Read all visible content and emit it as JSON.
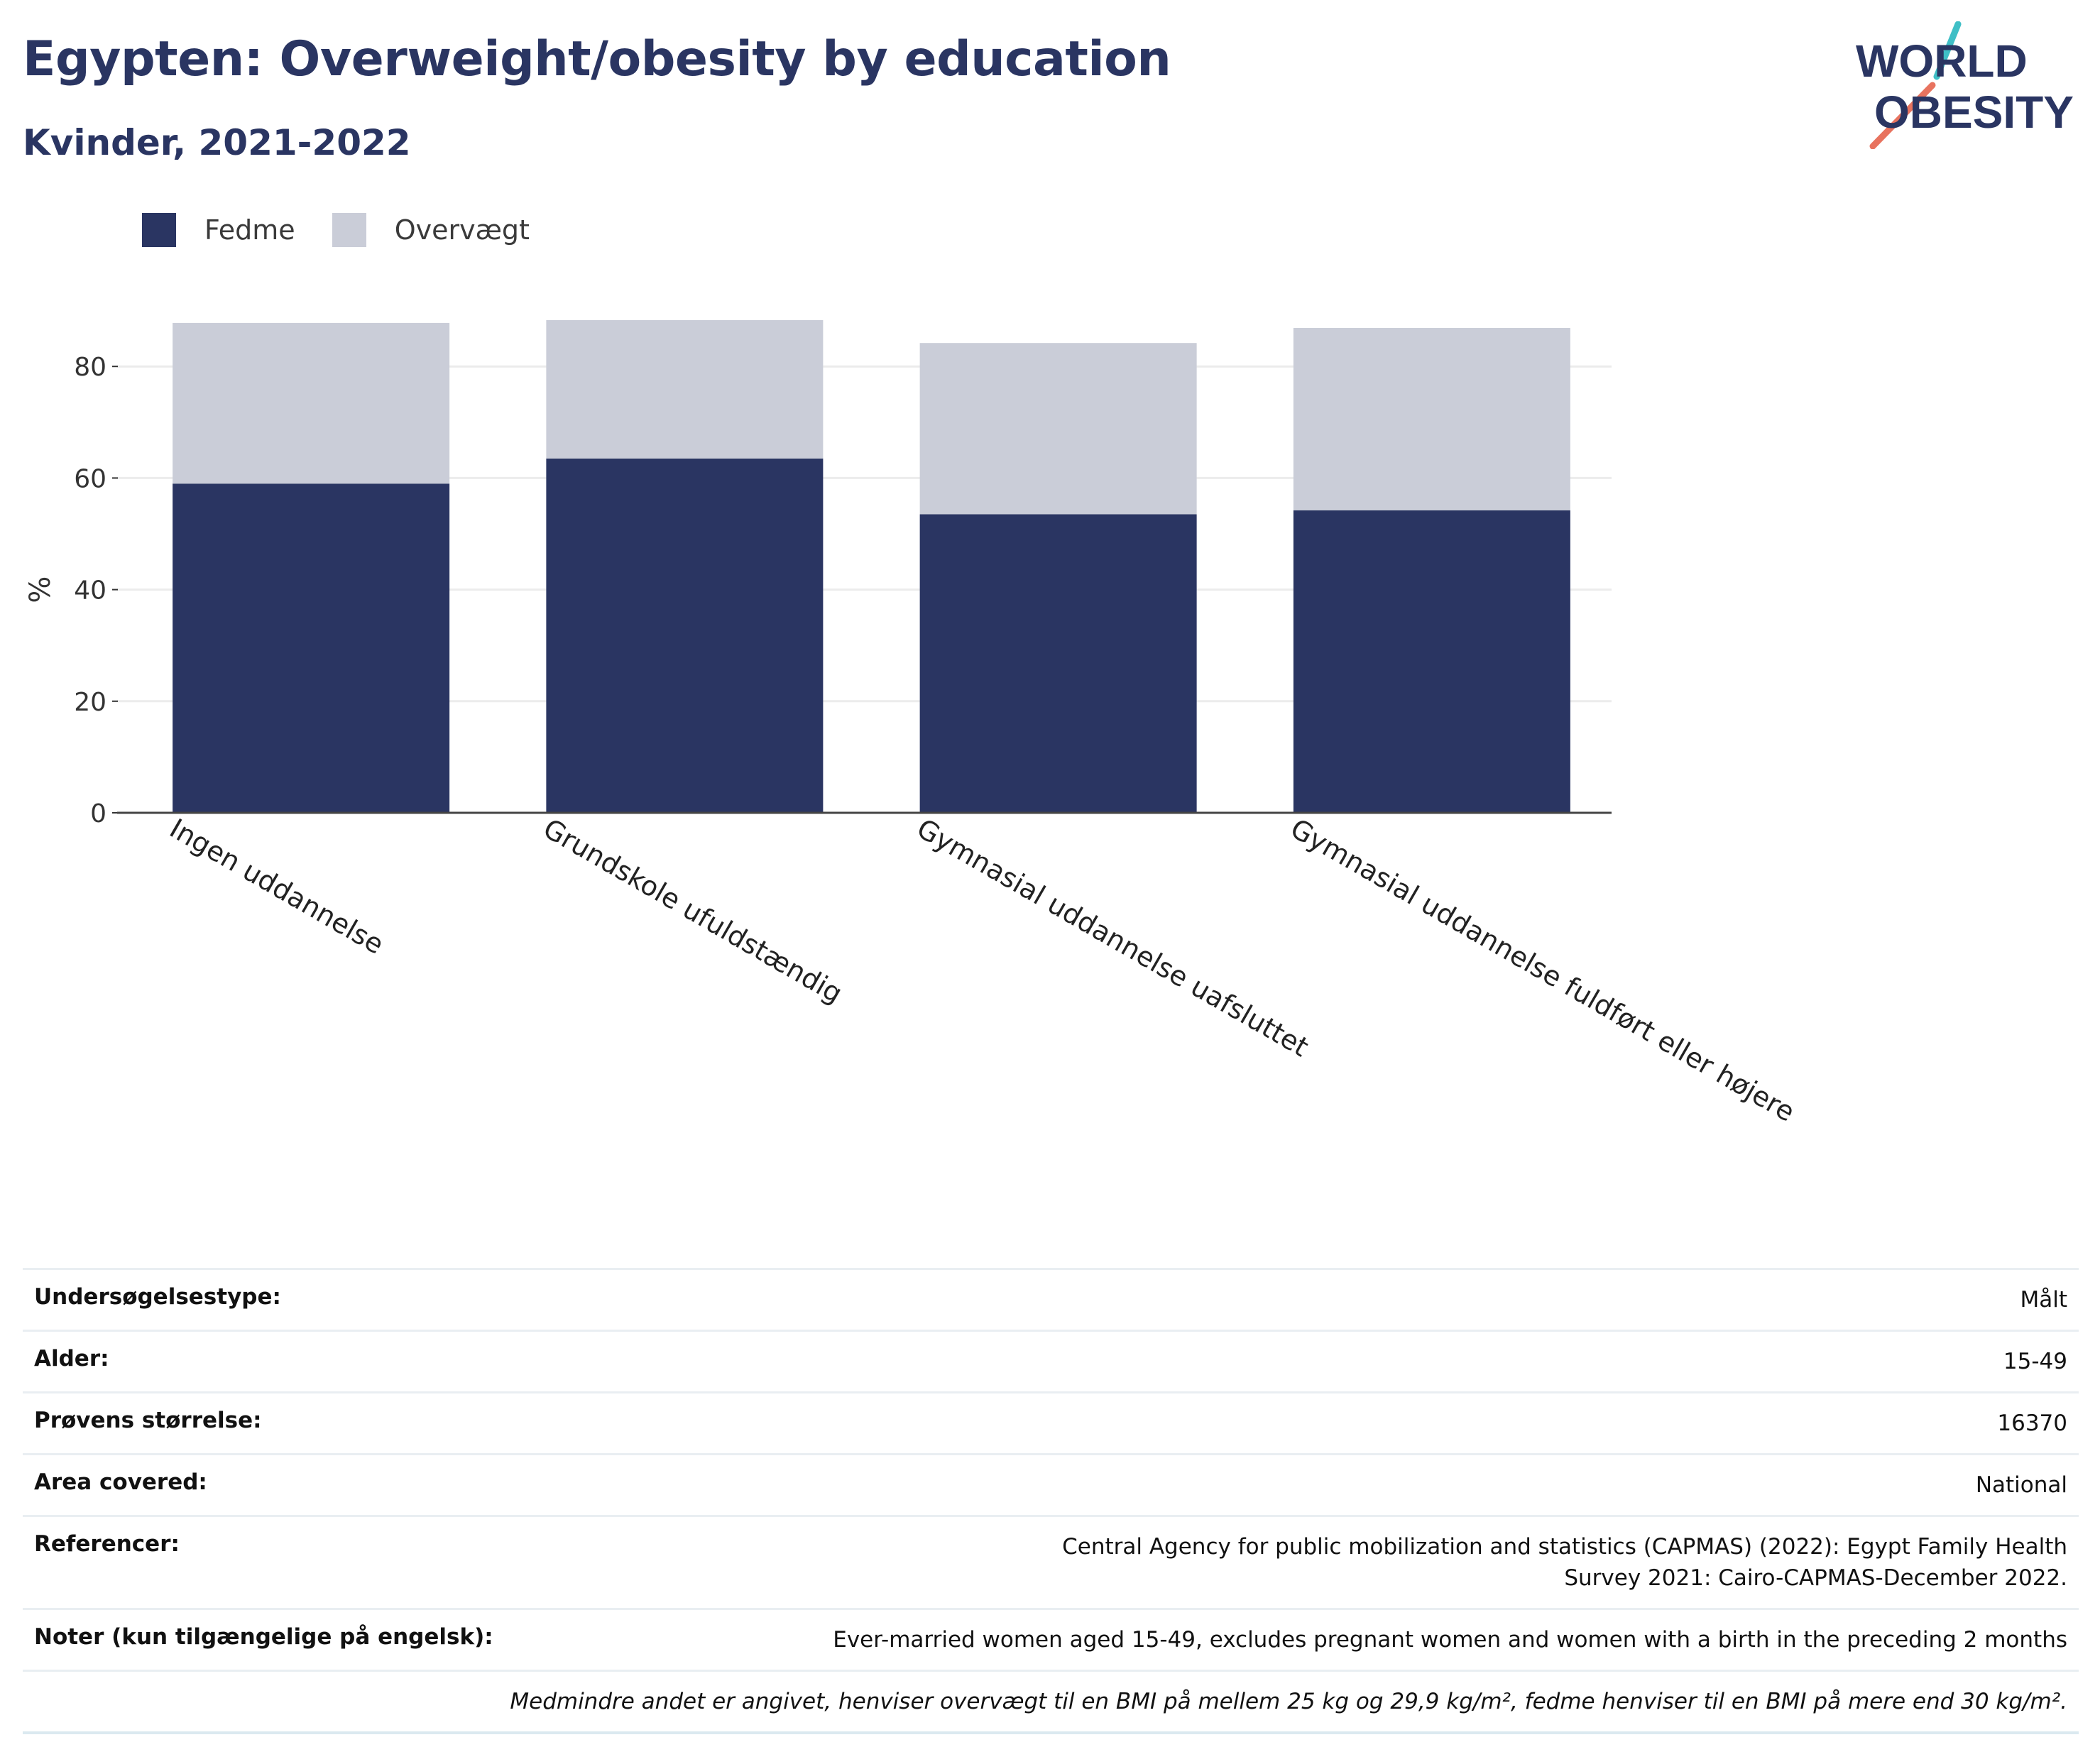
{
  "title": "Egypten: Overweight/obesity by education",
  "subtitle": "Kvinder, 2021-2022",
  "logo": {
    "line1": "WORLD",
    "line2": "OBESITY"
  },
  "colors": {
    "obesity": "#2a3562",
    "overweight": "#cacdd8",
    "accent_teal": "#3fbfc6",
    "accent_coral": "#e8735f",
    "text": "#2a3562"
  },
  "chart_data": {
    "type": "bar",
    "stacked": true,
    "categories": [
      "Ingen uddannelse",
      "Grundskole ufuldstændig",
      "Gymnasial uddannelse uafsluttet",
      "Gymnasial uddannelse fuldført eller højere"
    ],
    "series": [
      {
        "name": "Fedme",
        "values": [
          59.0,
          63.5,
          53.5,
          54.2
        ]
      },
      {
        "name": "Overvægt",
        "values": [
          28.8,
          24.8,
          30.7,
          32.7
        ]
      }
    ],
    "ylabel": "%",
    "xlabel": "",
    "yticks": [
      0,
      20,
      40,
      60,
      80
    ],
    "ylim": [
      0,
      92
    ],
    "grid": true,
    "legend_position": "top-left"
  },
  "info": {
    "rows": [
      {
        "label": "Undersøgelsestype:",
        "value": "Målt"
      },
      {
        "label": "Alder:",
        "value": "15-49"
      },
      {
        "label": "Prøvens størrelse:",
        "value": "16370"
      },
      {
        "label": "Area covered:",
        "value": "National"
      },
      {
        "label": "Referencer:",
        "value": "Central Agency for public mobilization and statistics (CAPMAS) (2022): Egypt Family Health Survey 2021: Cairo-CAPMAS-December 2022."
      },
      {
        "label": "Noter (kun tilgængelige på engelsk):",
        "value": "Ever-married women aged 15-49, excludes pregnant women and women with a birth in the preceding 2 months"
      }
    ],
    "footnote": "Medmindre andet er angivet, henviser overvægt til en BMI på mellem 25 kg og 29,9 kg/m², fedme henviser til en BMI på mere end 30 kg/m²."
  }
}
